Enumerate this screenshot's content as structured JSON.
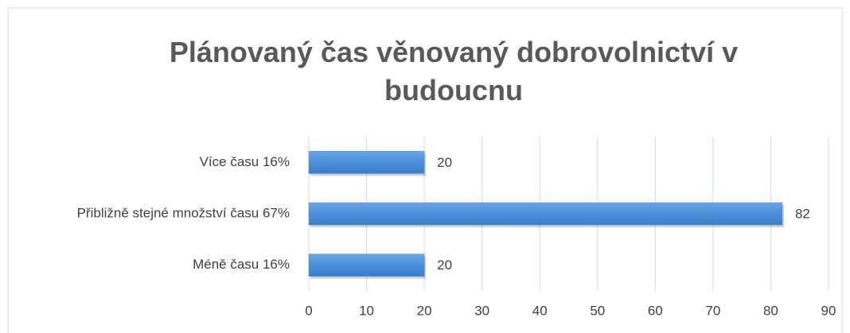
{
  "chart_data": {
    "type": "bar",
    "orientation": "horizontal",
    "title": "Plánovaný čas věnovaný dobrovolnictví v budoucnu",
    "categories": [
      "Více času 16%",
      "Přibližně stejné množství času 67%",
      "Méně času 16%"
    ],
    "values": [
      20,
      82,
      20
    ],
    "color": "#4a8fd8",
    "xlim": [
      0,
      90
    ],
    "xticks": [
      0,
      10,
      20,
      30,
      40,
      50,
      60,
      70,
      80,
      90
    ],
    "grid": true
  }
}
